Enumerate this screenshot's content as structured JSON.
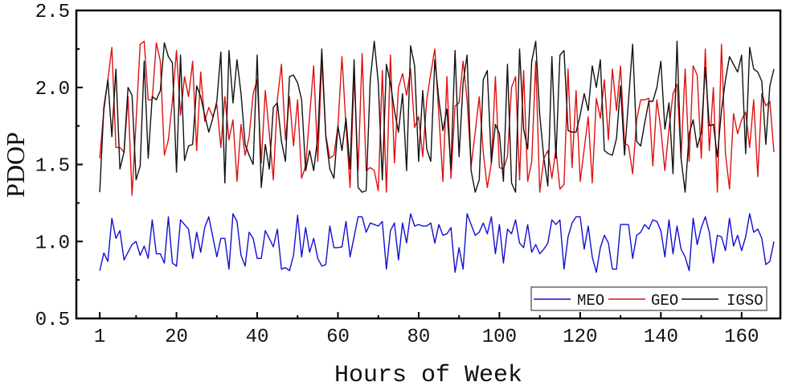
{
  "chart_data": {
    "type": "line",
    "title": "",
    "xlabel": "Hours of Week",
    "ylabel": "PDOP",
    "xlim": [
      -4.8,
      169.6
    ],
    "ylim": [
      0.5,
      2.5
    ],
    "xticks": [
      1,
      20,
      40,
      60,
      80,
      100,
      120,
      140,
      160
    ],
    "xtick_labels": [
      "1",
      "20",
      "40",
      "60",
      "80",
      "100",
      "120",
      "140",
      "160"
    ],
    "xminor": [
      10,
      30,
      50,
      70,
      90,
      110,
      130,
      150
    ],
    "yticks": [
      0.5,
      1.0,
      1.5,
      2.0,
      2.5
    ],
    "ytick_labels": [
      "0.5",
      "1.0",
      "1.5",
      "2.0",
      "2.5"
    ],
    "yminor": [
      0.75,
      1.25,
      1.75,
      2.25
    ],
    "grid": false,
    "legend_position": "bottom-right",
    "x_start": 1,
    "x_step": 1,
    "series": [
      {
        "name": "MEO",
        "color": "#1010d0",
        "values": [
          0.81,
          0.925,
          0.87,
          1.15,
          1.02,
          1.07,
          0.88,
          0.93,
          0.98,
          1.0,
          0.91,
          0.97,
          0.89,
          1.14,
          0.92,
          0.92,
          0.86,
          1.16,
          0.86,
          0.84,
          1.14,
          1.11,
          1.08,
          0.89,
          1.06,
          0.93,
          1.09,
          1.16,
          1.03,
          0.9,
          1.02,
          1.02,
          0.82,
          1.18,
          1.13,
          0.91,
          0.84,
          1.06,
          1.02,
          0.89,
          0.89,
          1.07,
          1.02,
          0.965,
          1.08,
          0.82,
          0.83,
          0.81,
          0.91,
          1.17,
          0.9,
          1.09,
          0.93,
          1.02,
          0.89,
          0.84,
          0.85,
          1.1,
          0.96,
          0.96,
          0.965,
          1.13,
          0.9,
          1.03,
          1.16,
          1.16,
          1.06,
          1.12,
          1.11,
          1.1,
          1.13,
          0.82,
          1.07,
          1.12,
          0.88,
          1.12,
          0.99,
          1.18,
          1.1,
          1.11,
          1.1,
          1.1,
          1.12,
          0.99,
          1.11,
          1.04,
          1.05,
          1.09,
          0.8,
          0.96,
          0.82,
          1.18,
          1.11,
          1.04,
          1.06,
          1.12,
          1.05,
          1.16,
          0.92,
          1.11,
          0.86,
          1.08,
          1.05,
          1.14,
          0.99,
          0.96,
          1.11,
          0.93,
          0.98,
          0.92,
          0.95,
          0.99,
          1.14,
          1.11,
          1.14,
          0.82,
          1.03,
          1.12,
          1.16,
          1.16,
          0.95,
          1.1,
          0.9,
          0.8,
          0.96,
          1.04,
          0.99,
          0.82,
          0.82,
          1.11,
          1.11,
          1.11,
          0.89,
          1.04,
          1.06,
          1.11,
          1.08,
          1.14,
          1.13,
          1.07,
          0.9,
          1.14,
          0.92,
          1.1,
          0.95,
          0.9,
          0.81,
          1.15,
          0.98,
          1.09,
          1.16,
          1.06,
          0.86,
          1.04,
          1.03,
          0.94,
          1.15,
          0.97,
          1.04,
          0.94,
          1.03,
          1.18,
          1.06,
          1.08,
          1.02,
          0.85,
          0.87,
          1.0
        ]
      },
      {
        "name": "GEO",
        "color": "#e01010",
        "values": [
          1.54,
          1.85,
          2.05,
          2.26,
          1.61,
          1.61,
          1.58,
          1.94,
          1.3,
          1.78,
          2.28,
          2.3,
          1.92,
          1.92,
          2.29,
          2.17,
          1.56,
          1.66,
          1.91,
          2.24,
          1.82,
          2.07,
          1.94,
          2.17,
          1.59,
          2.1,
          1.78,
          1.87,
          1.81,
          1.89,
          1.61,
          1.94,
          1.66,
          1.79,
          1.39,
          1.76,
          1.56,
          1.68,
          1.96,
          2.05,
          1.51,
          1.98,
          1.7,
          1.4,
          1.92,
          2.15,
          1.66,
          1.94,
          1.62,
          1.92,
          1.41,
          1.49,
          1.82,
          2.14,
          1.52,
          2.18,
          1.69,
          1.54,
          1.56,
          1.75,
          2.2,
          1.75,
          1.35,
          2.08,
          1.46,
          2.22,
          1.46,
          1.48,
          1.46,
          1.33,
          2.11,
          1.32,
          2.21,
          1.51,
          2.0,
          2.09,
          1.95,
          2.12,
          1.74,
          1.81,
          1.55,
          1.92,
          2.09,
          2.25,
          1.82,
          1.39,
          2.07,
          1.41,
          1.88,
          1.9,
          2.17,
          1.92,
          1.49,
          1.71,
          1.94,
          1.58,
          1.35,
          1.51,
          2.07,
          1.48,
          1.47,
          1.55,
          2.0,
          2.07,
          1.4,
          2.11,
          1.39,
          1.52,
          2.17,
          1.32,
          1.54,
          1.59,
          1.41,
          1.6,
          1.34,
          1.37,
          2.12,
          1.48,
          1.98,
          1.39,
          1.6,
          1.81,
          1.38,
          1.93,
          1.8,
          2.05,
          1.66,
          2.12,
          1.85,
          2.14,
          1.64,
          1.62,
          1.44,
          1.79,
          1.92,
          1.92,
          1.93,
          1.49,
          1.92,
          1.73,
          1.46,
          1.73,
          1.96,
          2.02,
          1.54,
          2.12,
          1.52,
          2.14,
          2.08,
          1.54,
          2.25,
          1.59,
          2.0,
          1.32,
          2.28,
          1.57,
          1.34,
          1.83,
          1.7,
          1.79,
          1.84,
          1.61,
          1.92,
          1.42,
          1.96,
          1.88,
          1.91,
          1.58
        ]
      },
      {
        "name": "IGSO",
        "color": "#111111",
        "values": [
          1.32,
          1.87,
          2.05,
          1.68,
          2.12,
          1.47,
          1.58,
          2.0,
          1.95,
          1.4,
          1.49,
          2.17,
          1.54,
          1.94,
          1.92,
          1.98,
          2.29,
          2.2,
          2.16,
          1.45,
          2.21,
          1.525,
          1.62,
          1.63,
          2.01,
          1.94,
          1.82,
          1.71,
          1.8,
          1.91,
          2.23,
          1.38,
          2.24,
          1.9,
          2.18,
          1.96,
          1.63,
          1.56,
          1.5,
          2.21,
          1.35,
          1.63,
          1.47,
          1.87,
          1.9,
          1.65,
          1.52,
          2.07,
          2.08,
          2.03,
          1.92,
          1.46,
          1.59,
          1.46,
          1.68,
          2.25,
          1.68,
          1.47,
          1.41,
          1.75,
          1.59,
          1.8,
          1.47,
          2.18,
          1.35,
          1.32,
          1.33,
          2.05,
          2.3,
          2.03,
          1.4,
          2.15,
          2.03,
          1.85,
          1.71,
          1.96,
          1.46,
          2.27,
          2.14,
          1.52,
          1.98,
          1.6,
          1.52,
          2.18,
          1.92,
          1.72,
          1.86,
          1.47,
          2.24,
          1.55,
          2.03,
          2.21,
          1.46,
          1.32,
          1.4,
          2.05,
          2.11,
          1.51,
          1.76,
          1.7,
          1.39,
          2.15,
          1.38,
          1.32,
          2.25,
          1.73,
          1.6,
          2.17,
          2.3,
          1.82,
          1.54,
          1.36,
          2.2,
          1.54,
          2.21,
          2.24,
          1.72,
          1.71,
          1.71,
          1.82,
          1.96,
          1.85,
          2.14,
          2.0,
          2.18,
          1.59,
          1.57,
          1.56,
          1.67,
          2.01,
          1.56,
          1.92,
          2.28,
          1.65,
          1.62,
          1.77,
          1.91,
          1.91,
          2.0,
          2.17,
          1.73,
          1.9,
          1.44,
          2.3,
          1.54,
          1.32,
          1.7,
          1.79,
          1.61,
          1.71,
          2.13,
          1.75,
          1.76,
          1.55,
          1.85,
          2.05,
          2.2,
          2.15,
          2.1,
          2.21,
          1.57,
          2.26,
          2.12,
          2.1,
          2.04,
          1.63,
          2.01,
          2.12
        ]
      }
    ]
  }
}
